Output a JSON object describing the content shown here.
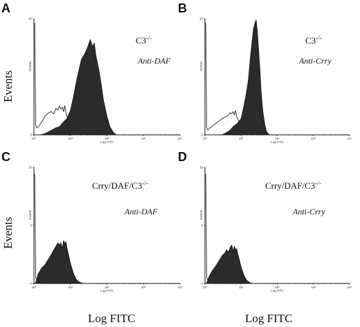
{
  "figure": {
    "shared_ylabel": "Events",
    "shared_xlabel": "Log FITC"
  },
  "chart_data": [
    {
      "panel": "A",
      "type": "area",
      "genotype": "C3-/-",
      "antibody": "Anti-DAF",
      "xlabel": "Log FITC",
      "ylabel": "Events",
      "x_scale": "log",
      "xlim": [
        1,
        10000
      ],
      "ylim": [
        0,
        10
      ],
      "x_ticks": [
        "10⁰",
        "10¹",
        "10²",
        "10³",
        "10⁴"
      ],
      "y_ticks": [
        "0",
        "10"
      ],
      "series": [
        {
          "style": "open outline (control)",
          "x": [
            1,
            1.05,
            1.12,
            1.2,
            1.4,
            1.7,
            2,
            2.5,
            3,
            3.5,
            4,
            4.5,
            5,
            5.5,
            6,
            6.5,
            7,
            7.5,
            8,
            9,
            10,
            11,
            12,
            13,
            14,
            15,
            16
          ],
          "y": [
            9.6,
            9.6,
            0.8,
            0.6,
            0.8,
            1.2,
            1.6,
            1.9,
            2.0,
            1.8,
            2.3,
            2.1,
            2.5,
            2.2,
            2.4,
            2.0,
            2.5,
            1.9,
            1.6,
            1.3,
            1.0,
            0.7,
            0.5,
            0.3,
            0.2,
            0.1,
            0
          ]
        },
        {
          "style": "filled (stained)",
          "x": [
            1.5,
            2,
            3,
            4,
            5,
            6,
            8,
            10,
            12,
            15,
            20,
            25,
            30,
            35,
            40,
            45,
            50,
            60,
            70,
            80,
            100,
            120,
            150,
            180
          ],
          "y": [
            0,
            0.1,
            0.4,
            0.6,
            0.7,
            1.0,
            1.4,
            2.1,
            3.2,
            4.8,
            6.5,
            7.0,
            7.6,
            8.2,
            7.6,
            7.9,
            6.8,
            5.6,
            4.3,
            3.0,
            1.6,
            0.7,
            0.2,
            0
          ]
        }
      ]
    },
    {
      "panel": "B",
      "type": "area",
      "genotype": "C3-/-",
      "antibody": "Anti-Crry",
      "xlabel": "Log FITC",
      "ylabel": "Events",
      "x_scale": "log",
      "xlim": [
        1,
        10000
      ],
      "ylim": [
        0,
        10
      ],
      "x_ticks": [
        "10⁰",
        "10¹",
        "10²",
        "10³",
        "10⁴"
      ],
      "y_ticks": [
        "0",
        "10"
      ],
      "series": [
        {
          "style": "open outline (control)",
          "x": [
            1,
            1.05,
            1.12,
            1.2,
            1.4,
            1.7,
            2,
            2.5,
            3,
            3.5,
            4,
            4.5,
            5,
            5.5,
            6,
            6.5,
            7,
            7.5,
            8,
            9,
            10,
            11,
            12,
            13,
            14,
            15
          ],
          "y": [
            9.6,
            9.6,
            0.6,
            0.4,
            0.6,
            0.8,
            1.0,
            1.2,
            1.4,
            1.5,
            1.6,
            1.7,
            1.9,
            1.8,
            2.0,
            1.7,
            2.1,
            1.6,
            1.4,
            1.0,
            0.7,
            0.4,
            0.3,
            0.2,
            0.1,
            0
          ]
        },
        {
          "style": "filled (stained)",
          "x": [
            3,
            4,
            5,
            6,
            8,
            10,
            12,
            14,
            16,
            18,
            20,
            22,
            24,
            26,
            28,
            30,
            33,
            36,
            40,
            45,
            50,
            60
          ],
          "y": [
            0,
            0.2,
            0.4,
            0.7,
            1.0,
            1.4,
            2.5,
            3.6,
            4.8,
            6.6,
            8.0,
            9.1,
            9.6,
            9.9,
            9.0,
            7.6,
            5.8,
            3.6,
            2.0,
            0.9,
            0.3,
            0
          ]
        }
      ]
    },
    {
      "panel": "C",
      "type": "area",
      "genotype": "Crry/DAF/C3-/-",
      "antibody": "Anti-DAF",
      "xlabel": "Log FITC",
      "ylabel": "Events",
      "x_scale": "log",
      "xlim": [
        1,
        10000
      ],
      "ylim": [
        0,
        10
      ],
      "x_ticks": [
        "10⁰",
        "10¹",
        "10²",
        "10³",
        "10⁴"
      ],
      "y_ticks": [
        "0",
        "5",
        "10"
      ],
      "series": [
        {
          "style": "open outline (control)",
          "x": [
            1,
            1.05,
            1.12,
            1.3
          ],
          "y": [
            9.4,
            9.4,
            0.5,
            0
          ]
        },
        {
          "style": "filled (stained)",
          "x": [
            1.1,
            1.3,
            1.6,
            2,
            2.5,
            3,
            3.5,
            4,
            4.5,
            5,
            5.5,
            6,
            6.5,
            7,
            7.5,
            8,
            9,
            10,
            12,
            14,
            16,
            18,
            20,
            22
          ],
          "y": [
            0,
            0.8,
            1.3,
            1.6,
            2.1,
            2.5,
            2.9,
            3.2,
            3.5,
            3.3,
            3.5,
            3.0,
            3.7,
            3.4,
            3.6,
            3.1,
            2.4,
            1.7,
            0.9,
            0.4,
            0.2,
            0.1,
            0.05,
            0
          ]
        }
      ]
    },
    {
      "panel": "D",
      "type": "area",
      "genotype": "Crry/DAF/C3-/-",
      "antibody": "Anti-Crry",
      "xlabel": "Log FITC",
      "ylabel": "Events",
      "x_scale": "log",
      "xlim": [
        1,
        10000
      ],
      "ylim": [
        0,
        10
      ],
      "x_ticks": [
        "10⁰",
        "10¹",
        "10²",
        "10³",
        "10⁴"
      ],
      "y_ticks": [
        "0",
        "5",
        "10"
      ],
      "series": [
        {
          "style": "open outline (control)",
          "x": [
            1,
            1.05,
            1.12,
            1.3
          ],
          "y": [
            9.4,
            9.4,
            0.5,
            0
          ]
        },
        {
          "style": "filled (stained)",
          "x": [
            1.1,
            1.3,
            1.6,
            2,
            2.5,
            3,
            3.5,
            4,
            4.5,
            5,
            5.5,
            6,
            6.5,
            7,
            7.5,
            8,
            9,
            10,
            12,
            14,
            16,
            18,
            20
          ],
          "y": [
            0,
            0.6,
            1.1,
            1.5,
            2.0,
            2.4,
            2.6,
            2.9,
            2.7,
            3.1,
            3.3,
            2.8,
            3.2,
            2.9,
            3.0,
            2.6,
            2.0,
            1.4,
            0.7,
            0.3,
            0.15,
            0.05,
            0
          ]
        }
      ]
    }
  ]
}
